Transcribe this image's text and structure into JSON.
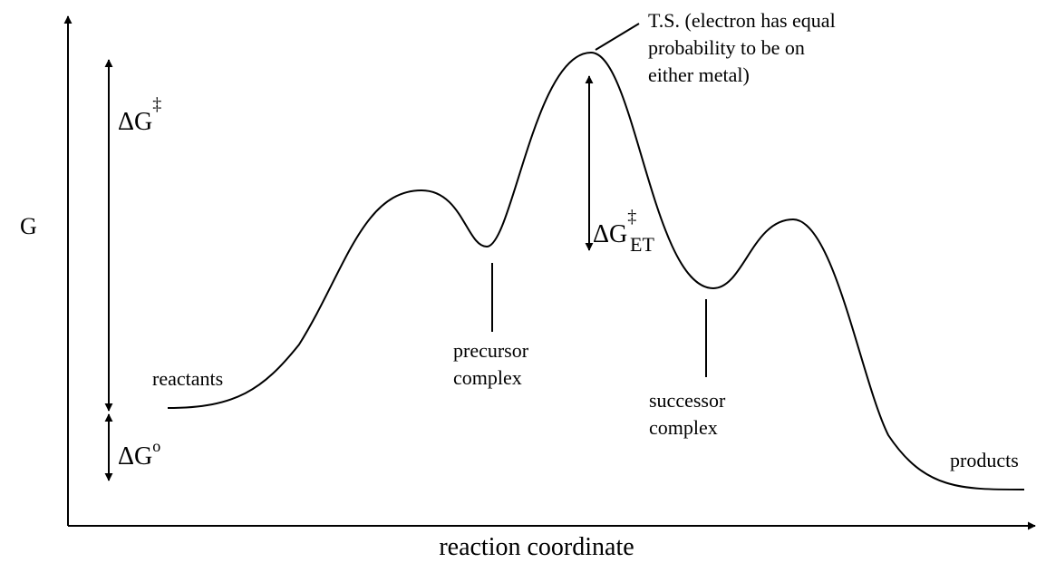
{
  "axes": {
    "y_label": "G",
    "x_label": "reaction coordinate"
  },
  "energies": {
    "activation": {
      "base": "ΔG",
      "sup": "‡"
    },
    "electron_transfer": {
      "base": "ΔG",
      "sup": "‡",
      "sub": "ET"
    },
    "standard": {
      "base": "ΔG",
      "sup": "o"
    }
  },
  "states": {
    "reactants": "reactants",
    "precursor": [
      "precursor",
      "complex"
    ],
    "successor": [
      "successor",
      "complex"
    ],
    "products": "products",
    "transition_state": [
      "T.S. (electron has equal",
      "probability to be on",
      "either metal)"
    ]
  }
}
